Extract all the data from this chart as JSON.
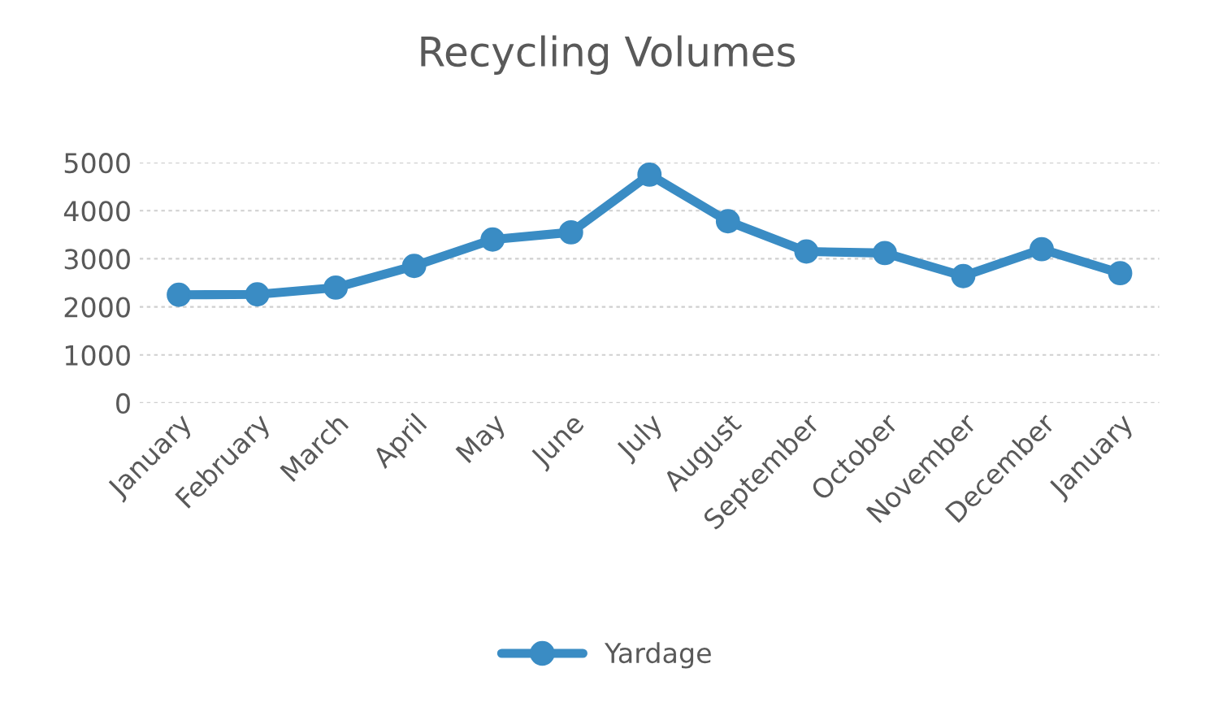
{
  "chart_data": {
    "type": "line",
    "title": "Recycling Volumes",
    "categories": [
      "January",
      "February",
      "March",
      "April",
      "May",
      "June",
      "July",
      "August",
      "September",
      "October",
      "November",
      "December",
      "January"
    ],
    "series": [
      {
        "name": "Yardage",
        "color": "#3a8cc4",
        "values": [
          2250,
          2260,
          2400,
          2850,
          3400,
          3550,
          4750,
          3780,
          3150,
          3120,
          2640,
          3200,
          2700
        ]
      }
    ],
    "ylim": [
      0,
      5000
    ],
    "yticks": [
      0,
      1000,
      2000,
      3000,
      4000,
      5000
    ],
    "grid": "y",
    "legend": "bottom",
    "marker": "circle",
    "line_style": "solid"
  }
}
